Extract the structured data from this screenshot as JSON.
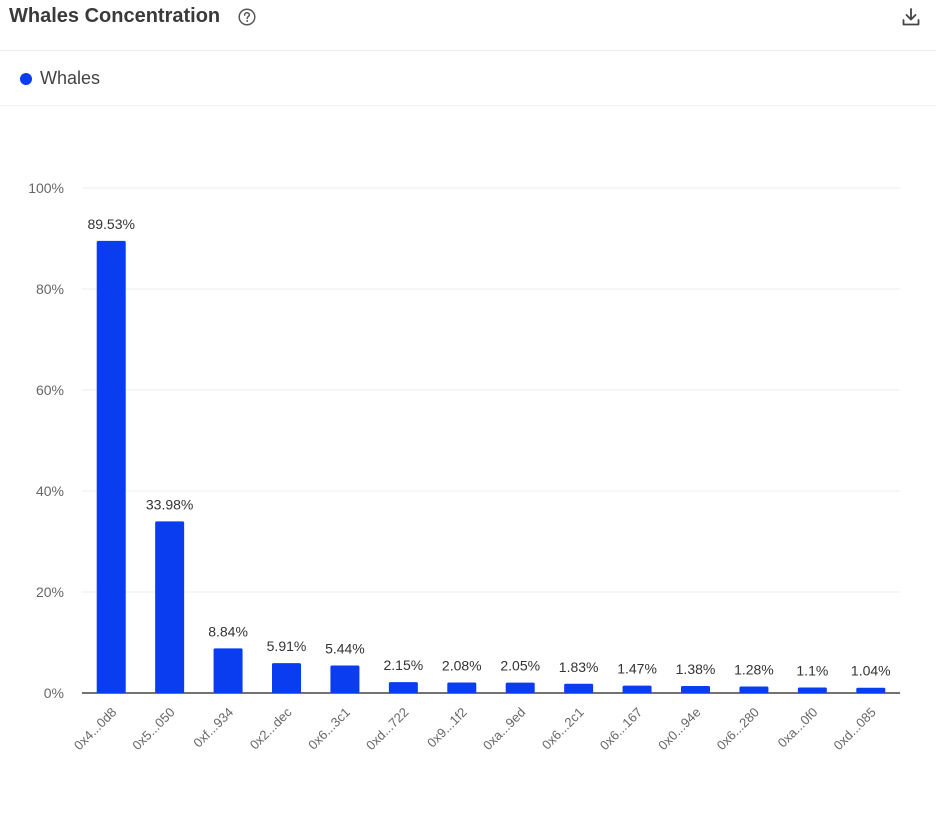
{
  "header": {
    "title": "Whales Concentration",
    "help_icon": "question-circle-icon",
    "download_icon": "download-icon"
  },
  "colors": {
    "bar": "#0a3cf0",
    "grid": "#ededed",
    "axis": "#444444",
    "tick_text": "#666666"
  },
  "chart_data": {
    "type": "bar",
    "legend": {
      "position": "top-left",
      "entries": [
        "Whales"
      ]
    },
    "categories": [
      "0x4...0d8",
      "0x5...050",
      "0xf...934",
      "0x2...dec",
      "0x6...3c1",
      "0xd...722",
      "0x9...1f2",
      "0xa...9ed",
      "0x6...2c1",
      "0x6...167",
      "0x0...94e",
      "0x6...280",
      "0xa...0f0",
      "0xd...085"
    ],
    "series": [
      {
        "name": "Whales",
        "values": [
          89.53,
          33.98,
          8.84,
          5.91,
          5.44,
          2.15,
          2.08,
          2.05,
          1.83,
          1.47,
          1.38,
          1.28,
          1.1,
          1.04
        ],
        "labels": [
          "89.53%",
          "33.98%",
          "8.84%",
          "5.91%",
          "5.44%",
          "2.15%",
          "2.08%",
          "2.05%",
          "1.83%",
          "1.47%",
          "1.38%",
          "1.28%",
          "1.1%",
          "1.04%"
        ]
      }
    ],
    "ylim": [
      0,
      100
    ],
    "yticks": [
      0,
      20,
      40,
      60,
      80,
      100
    ],
    "ytick_labels": [
      "0%",
      "20%",
      "40%",
      "60%",
      "80%",
      "100%"
    ],
    "grid": true
  }
}
